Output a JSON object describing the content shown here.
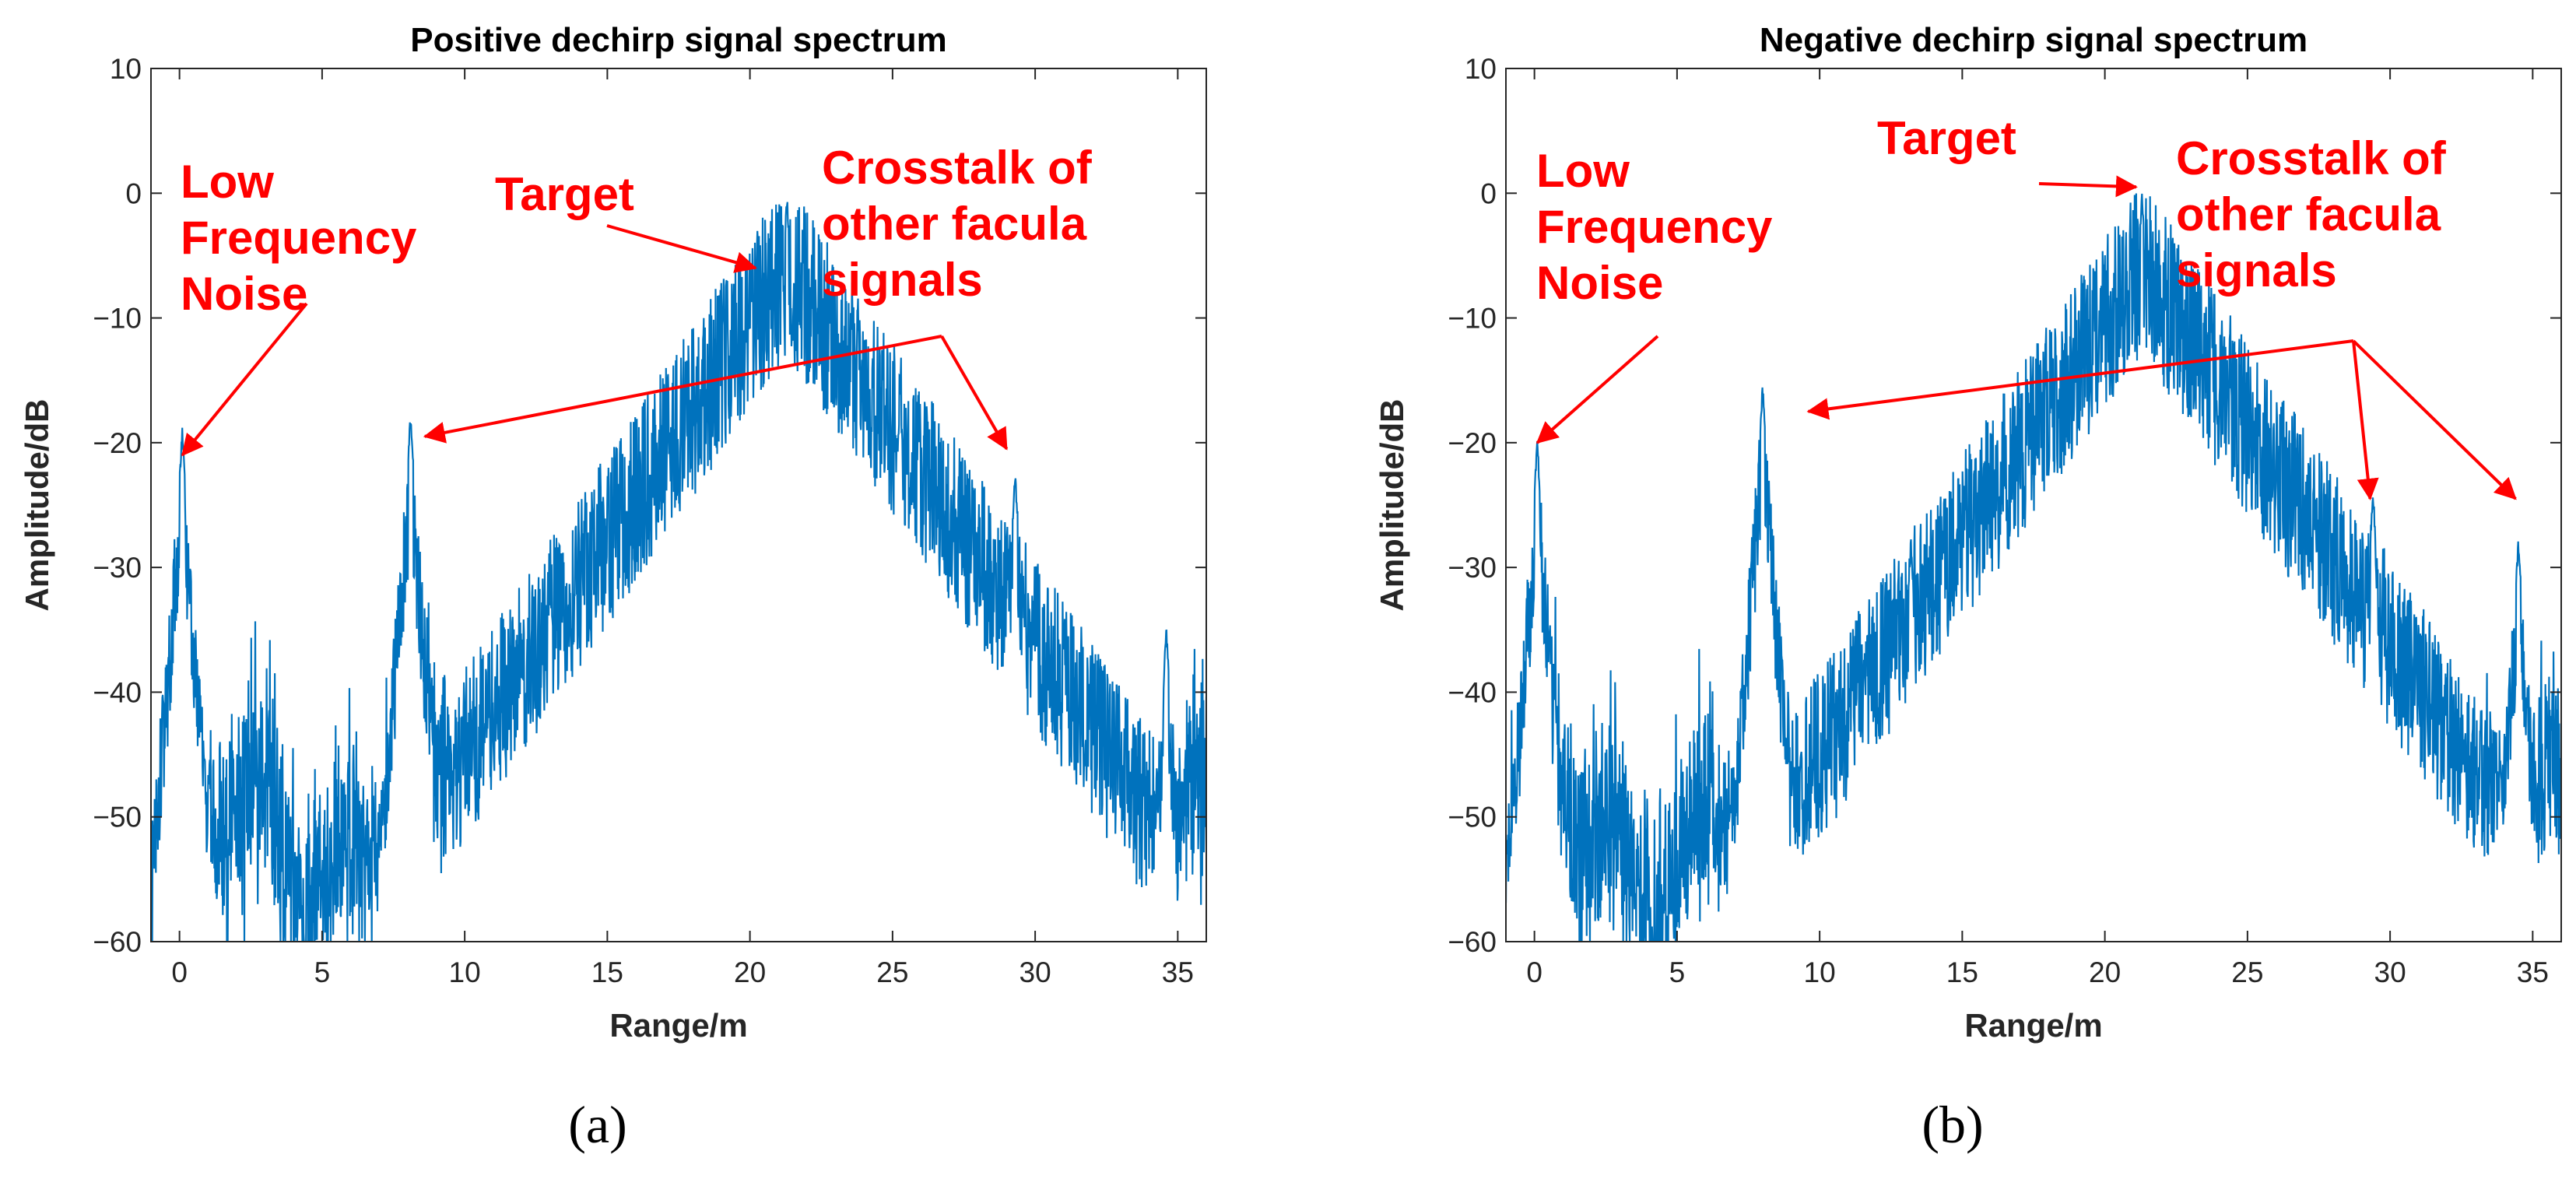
{
  "chart_data": [
    {
      "type": "line",
      "panel_label": "(a)",
      "title": "Positive dechirp signal spectrum",
      "xlabel": "Range/m",
      "ylabel": "Amplitude/dB",
      "xlim": [
        -1,
        36
      ],
      "ylim": [
        -60,
        10
      ],
      "xticks": [
        0,
        5,
        10,
        15,
        20,
        25,
        30,
        35
      ],
      "yticks": [
        10,
        0,
        -10,
        -20,
        -30,
        -40,
        -50,
        -60
      ],
      "grid": false,
      "series_color": "#0072bd",
      "peaks": [
        {
          "x": 0.1,
          "y": -18.5
        },
        {
          "x": 8.1,
          "y": -17.5
        },
        {
          "x": 13.0,
          "y": -31.0
        },
        {
          "x": 21.3,
          "y": 0.0
        },
        {
          "x": 29.3,
          "y": -22.0
        },
        {
          "x": 34.6,
          "y": -34.5
        }
      ],
      "noise_floor_db": -52,
      "annotations": [
        {
          "text_lines": [
            "Low",
            "Frequency",
            "Noise"
          ],
          "arrow_to": {
            "x": 0.1,
            "y": -21
          }
        },
        {
          "text_lines": [
            "Target"
          ],
          "arrow_to": {
            "x": 20.2,
            "y": -6
          }
        },
        {
          "text_lines": [
            "Crosstalk of",
            "other facula",
            "signals"
          ],
          "arrow_to": [
            {
              "x": 8.6,
              "y": -19.5
            },
            {
              "x": 29.0,
              "y": -20.5
            }
          ]
        }
      ]
    },
    {
      "type": "line",
      "panel_label": "(b)",
      "title": "Negative dechirp signal spectrum",
      "xlabel": "Range/m",
      "ylabel": "Amplitude/dB",
      "xlim": [
        -1,
        36
      ],
      "ylim": [
        -60,
        10
      ],
      "xticks": [
        0,
        5,
        10,
        15,
        20,
        25,
        30,
        35
      ],
      "yticks": [
        10,
        0,
        -10,
        -20,
        -30,
        -40,
        -50,
        -60
      ],
      "grid": false,
      "series_color": "#0072bd",
      "peaks": [
        {
          "x": 0.1,
          "y": -19.5
        },
        {
          "x": 8.0,
          "y": -15.0
        },
        {
          "x": 13.2,
          "y": -27.5
        },
        {
          "x": 21.3,
          "y": 0.0
        },
        {
          "x": 29.4,
          "y": -23.5
        },
        {
          "x": 34.5,
          "y": -27.5
        }
      ],
      "noise_floor_db": -52,
      "annotations": [
        {
          "text_lines": [
            "Low",
            "Frequency",
            "Noise"
          ],
          "arrow_to": {
            "x": 0.1,
            "y": -20
          }
        },
        {
          "text_lines": [
            "Target"
          ],
          "arrow_to": {
            "x": 21.1,
            "y": 0.5
          }
        },
        {
          "text_lines": [
            "Crosstalk of",
            "other facula",
            "signals"
          ],
          "arrow_to": [
            {
              "x": 9.6,
              "y": -17.5
            },
            {
              "x": 29.3,
              "y": -24.5
            },
            {
              "x": 34.4,
              "y": -24.5
            }
          ]
        }
      ]
    }
  ]
}
